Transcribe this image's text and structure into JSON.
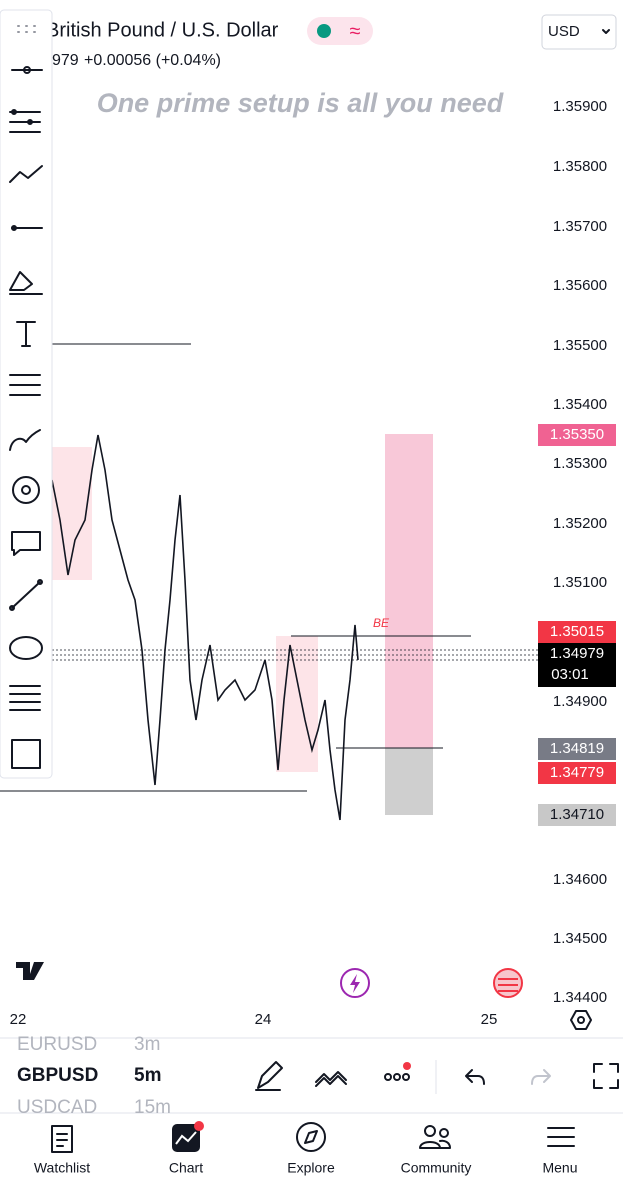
{
  "header": {
    "title": "British Pound / U.S. Dollar",
    "last_price": "979",
    "change": "+0.00056 (+0.04%)",
    "currency": "USD"
  },
  "annotations": {
    "headline": "One prime setup is all you need",
    "breakeven": "BE"
  },
  "price_axis": [
    "1.35900",
    "1.35800",
    "1.35700",
    "1.35600",
    "1.35500",
    "1.35400",
    "1.35300",
    "1.35200",
    "1.35100",
    "1.34900",
    "1.34600",
    "1.34500",
    "1.34400"
  ],
  "price_labels": {
    "target": "1.35350",
    "entry": "1.35015",
    "current": "1.34979",
    "countdown": "03:01",
    "stop_line": "1.34819",
    "bid": "1.34779",
    "stop": "1.34710"
  },
  "time_axis": [
    "22",
    "24",
    "25"
  ],
  "symbols": [
    {
      "symbol": "EURUSD",
      "interval": "3m"
    },
    {
      "symbol": "GBPUSD",
      "interval": "5m"
    },
    {
      "symbol": "USDCAD",
      "interval": "15m"
    }
  ],
  "nav": [
    "Watchlist",
    "Chart",
    "Explore",
    "Community",
    "Menu"
  ]
}
